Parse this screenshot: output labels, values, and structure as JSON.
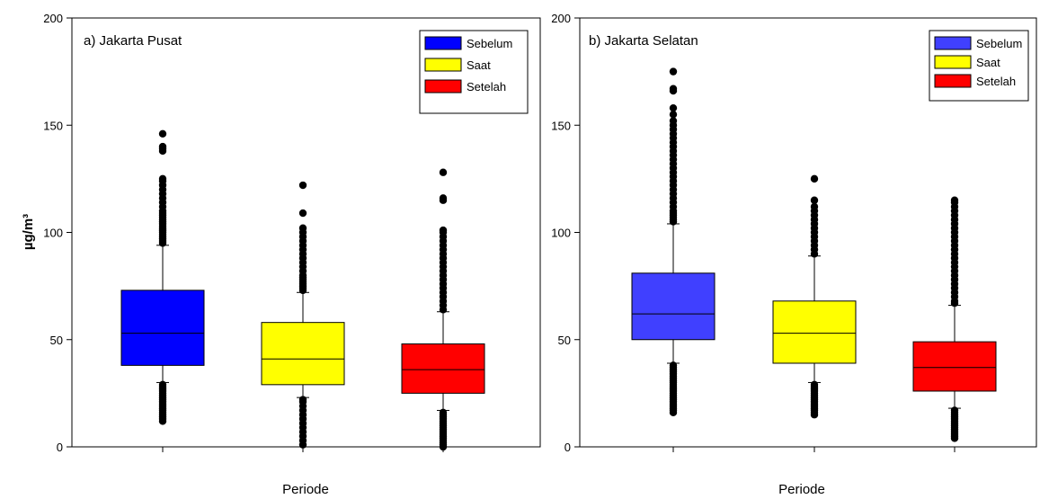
{
  "chart_data": [
    {
      "type": "box",
      "title": "a) Jakarta Pusat",
      "xlabel": "Periode",
      "ylabel": "µg/m³",
      "ylim": [
        0,
        200
      ],
      "yticks": [
        0,
        50,
        100,
        150,
        200
      ],
      "grid": false,
      "legend_position": "top-right",
      "series": [
        {
          "name": "Sebelum",
          "color": "#0000ff",
          "q1": 38,
          "median": 53,
          "q3": 73,
          "whisker_low": 30,
          "whisker_high": 94,
          "outliers": [
            12,
            13,
            14,
            15,
            16,
            17,
            18,
            19,
            20,
            21,
            22,
            23,
            24,
            25,
            26,
            27,
            28,
            29,
            95,
            96,
            97,
            98,
            99,
            100,
            101,
            102,
            103,
            104,
            105,
            106,
            107,
            108,
            109,
            110,
            112,
            114,
            116,
            118,
            120,
            122,
            124,
            125,
            138,
            139,
            140,
            146
          ]
        },
        {
          "name": "Saat",
          "color": "#ffff00",
          "q1": 29,
          "median": 41,
          "q3": 58,
          "whisker_low": 23,
          "whisker_high": 72,
          "outliers": [
            1,
            3,
            5,
            7,
            9,
            11,
            13,
            15,
            17,
            19,
            21,
            22,
            73,
            74,
            75,
            76,
            77,
            78,
            79,
            80,
            82,
            84,
            86,
            88,
            90,
            92,
            94,
            96,
            98,
            100,
            102,
            109,
            122
          ]
        },
        {
          "name": "Setelah",
          "color": "#ff0000",
          "q1": 25,
          "median": 36,
          "q3": 48,
          "whisker_low": 17,
          "whisker_high": 63,
          "outliers": [
            0,
            1,
            2,
            3,
            4,
            5,
            6,
            7,
            8,
            9,
            10,
            11,
            12,
            13,
            14,
            15,
            16,
            64,
            66,
            68,
            70,
            72,
            74,
            76,
            78,
            80,
            82,
            84,
            86,
            88,
            90,
            92,
            94,
            96,
            98,
            100,
            101,
            115,
            116,
            128
          ]
        }
      ]
    },
    {
      "type": "box",
      "title": "b) Jakarta Selatan",
      "xlabel": "Periode",
      "ylabel": "",
      "ylim": [
        0,
        200
      ],
      "yticks": [
        0,
        50,
        100,
        150,
        200
      ],
      "grid": false,
      "legend_position": "top-right",
      "series": [
        {
          "name": "Sebelum",
          "color": "#4040ff",
          "q1": 50,
          "median": 62,
          "q3": 81,
          "whisker_low": 39,
          "whisker_high": 104,
          "outliers": [
            16,
            17,
            18,
            19,
            20,
            21,
            22,
            23,
            24,
            25,
            26,
            27,
            28,
            29,
            30,
            31,
            32,
            33,
            34,
            35,
            36,
            37,
            38,
            105,
            106,
            107,
            108,
            109,
            110,
            112,
            114,
            116,
            118,
            120,
            122,
            124,
            126,
            128,
            130,
            132,
            134,
            136,
            138,
            140,
            142,
            144,
            146,
            148,
            150,
            152,
            155,
            158,
            166,
            167,
            175
          ]
        },
        {
          "name": "Saat",
          "color": "#ffff00",
          "q1": 39,
          "median": 53,
          "q3": 68,
          "whisker_low": 30,
          "whisker_high": 89,
          "outliers": [
            15,
            16,
            17,
            18,
            19,
            20,
            21,
            22,
            23,
            24,
            25,
            26,
            27,
            28,
            29,
            90,
            92,
            94,
            96,
            98,
            100,
            102,
            104,
            106,
            108,
            110,
            112,
            115,
            125
          ]
        },
        {
          "name": "Setelah",
          "color": "#ff0000",
          "q1": 26,
          "median": 37,
          "q3": 49,
          "whisker_low": 18,
          "whisker_high": 66,
          "outliers": [
            4,
            5,
            6,
            7,
            8,
            9,
            10,
            11,
            12,
            13,
            14,
            15,
            16,
            17,
            67,
            68,
            70,
            72,
            74,
            76,
            78,
            80,
            82,
            84,
            86,
            88,
            90,
            92,
            94,
            96,
            98,
            100,
            102,
            104,
            106,
            108,
            110,
            112,
            114,
            115
          ]
        }
      ]
    }
  ]
}
